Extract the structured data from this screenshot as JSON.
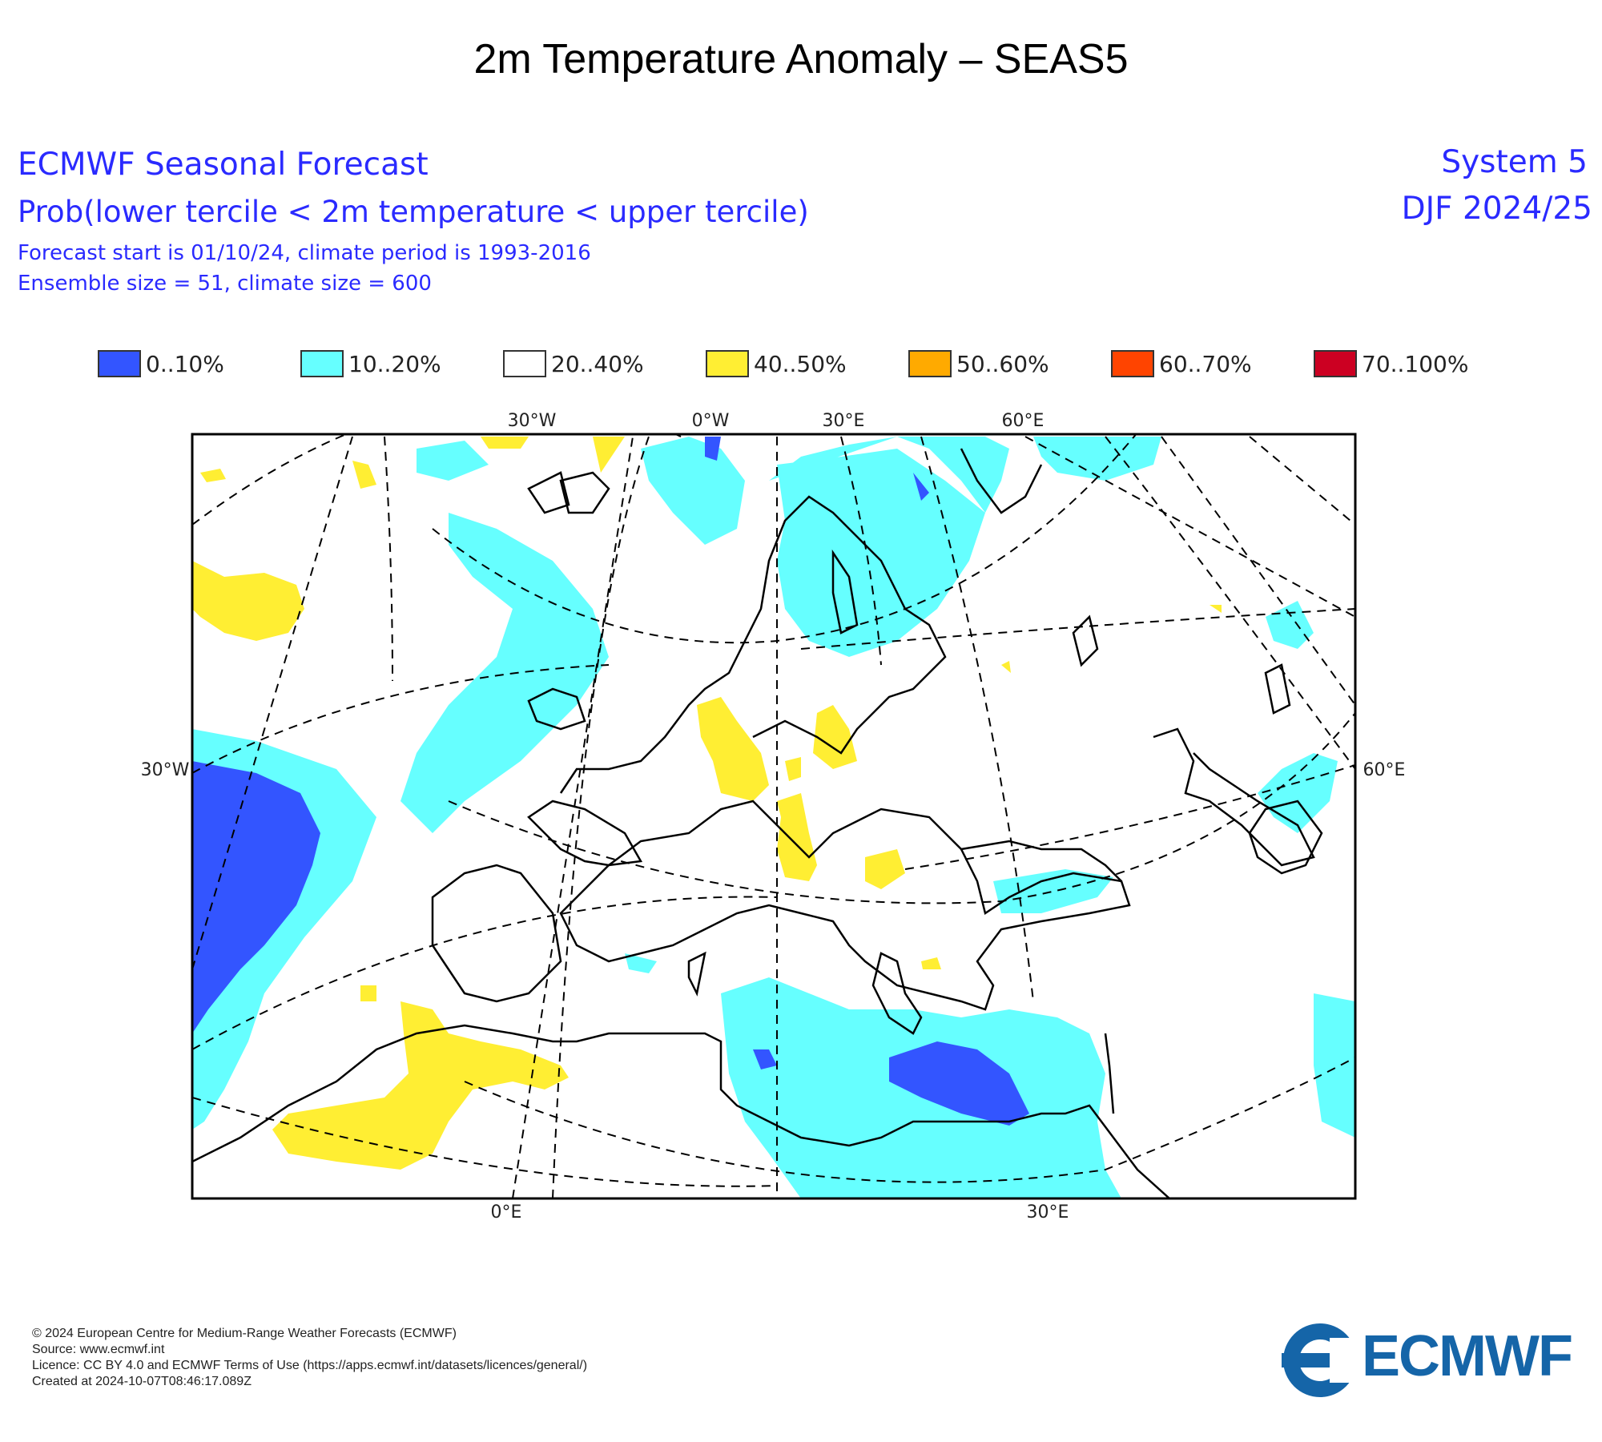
{
  "title": "2m Temperature Anomaly – SEAS5",
  "header": {
    "org": "ECMWF Seasonal Forecast",
    "prob": "Prob(lower tercile < 2m temperature < upper tercile)",
    "start": "Forecast start is 01/10/24, climate period is 1993-2016",
    "ensemble": "Ensemble size = 51, climate size = 600",
    "system": "System 5",
    "season": "DJF 2024/25"
  },
  "legend": [
    {
      "label": "0..10%",
      "color": "#3355ff"
    },
    {
      "label": "10..20%",
      "color": "#66ffff"
    },
    {
      "label": "20..40%",
      "color": "#ffffff"
    },
    {
      "label": "40..50%",
      "color": "#ffee33"
    },
    {
      "label": "50..60%",
      "color": "#ffaa00"
    },
    {
      "label": "60..70%",
      "color": "#ff4400"
    },
    {
      "label": "70..100%",
      "color": "#cc0022"
    }
  ],
  "map": {
    "top_labels": [
      "30°W",
      "0°W",
      "30°E",
      "60°E"
    ],
    "left_label": "30°W",
    "right_label": "60°E",
    "bottom_labels": [
      "0°E",
      "30°E"
    ]
  },
  "footer": {
    "copyright": "© 2024 European Centre for Medium-Range Weather Forecasts (ECMWF)",
    "source": "Source: www.ecmwf.int",
    "licence": "Licence: CC BY 4.0 and ECMWF Terms of Use (https://apps.ecmwf.int/datasets/licences/general/)",
    "created": "Created at 2024-10-07T08:46:17.089Z",
    "logo_text": "ECMWF"
  }
}
